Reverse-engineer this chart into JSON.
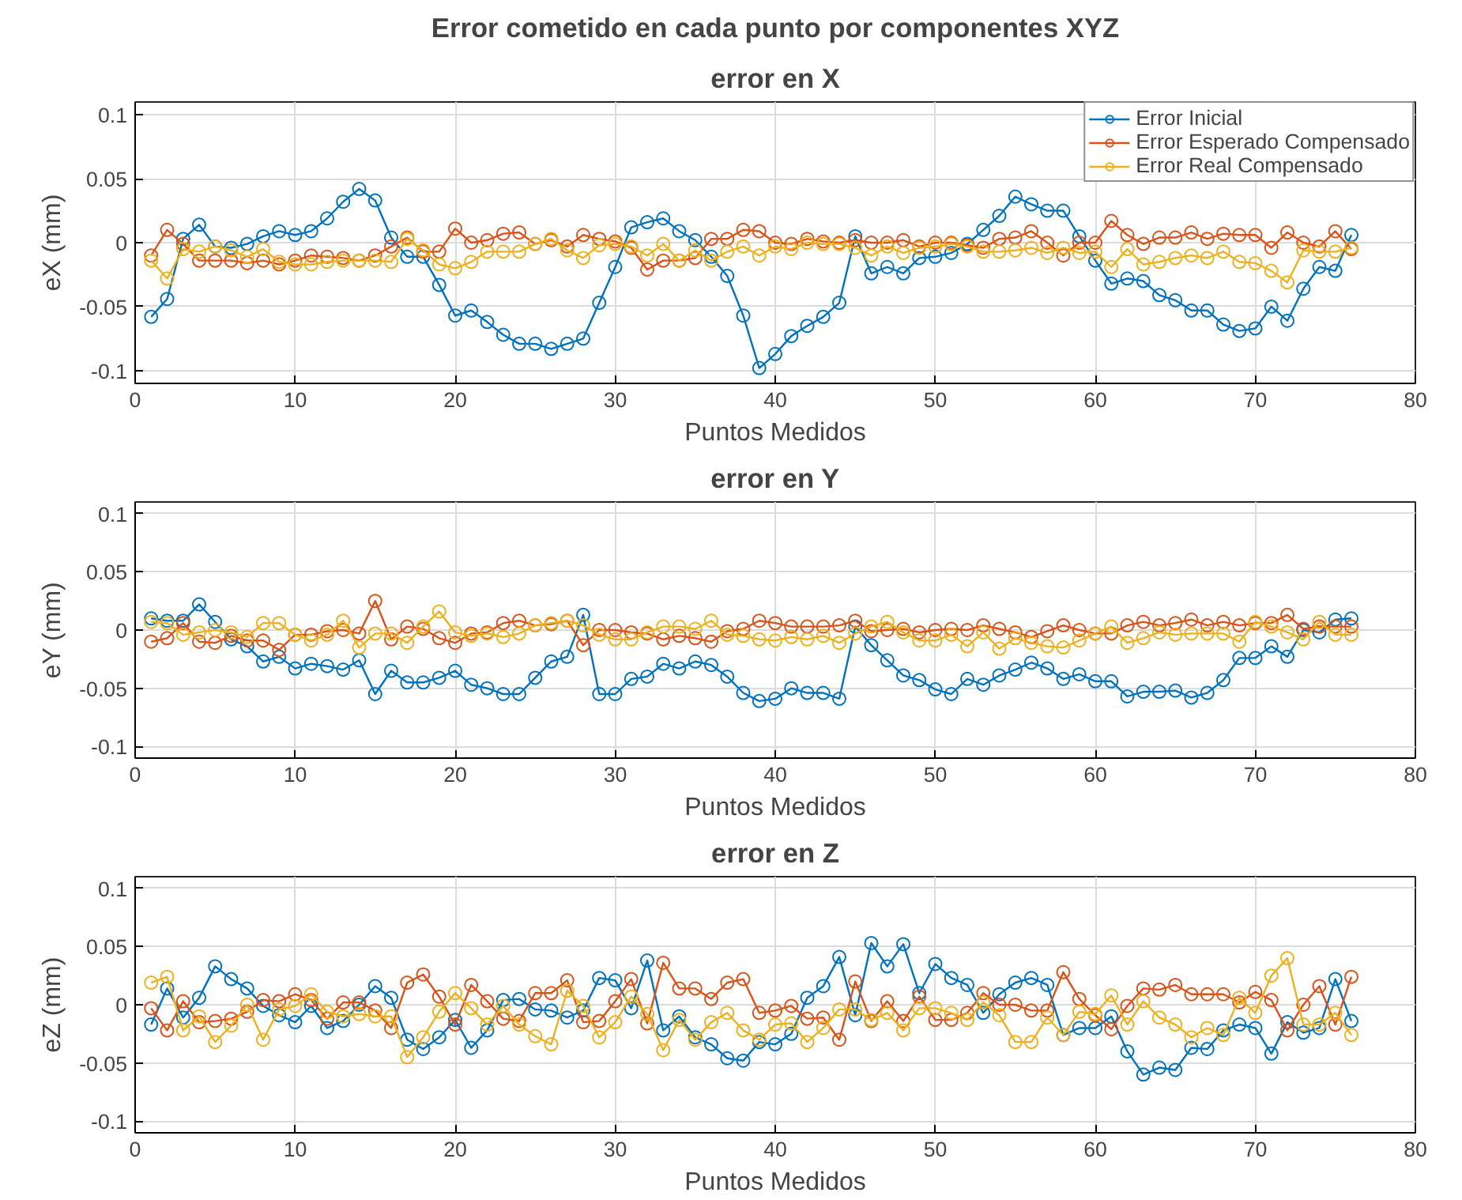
{
  "chart_data": [
    {
      "type": "line",
      "title": "Error cometido en cada punto por componentes XYZ",
      "subtitle": "error en X",
      "xlabel": "Puntos Medidos",
      "ylabel": "eX (mm)",
      "marker": "circle",
      "line_style": "solid",
      "grid": true,
      "legend": "top right",
      "x": [
        1,
        2,
        3,
        4,
        5,
        6,
        7,
        8,
        9,
        10,
        11,
        12,
        13,
        14,
        15,
        16,
        17,
        18,
        19,
        20,
        21,
        22,
        23,
        24,
        25,
        26,
        27,
        28,
        29,
        30,
        31,
        32,
        33,
        34,
        35,
        36,
        37,
        38,
        39,
        40,
        41,
        42,
        43,
        44,
        45,
        46,
        47,
        48,
        49,
        50,
        51,
        52,
        53,
        54,
        55,
        56,
        57,
        58,
        59,
        60,
        61,
        62,
        63,
        64,
        65,
        66,
        67,
        68,
        69,
        70,
        71,
        72,
        73,
        74,
        75,
        76
      ],
      "xlim": [
        0,
        80
      ],
      "xticks": [
        0,
        10,
        20,
        30,
        40,
        50,
        60,
        70,
        80
      ],
      "ylim": [
        -0.11,
        0.11
      ],
      "yticks": [
        -0.1,
        -0.05,
        0,
        0.05,
        0.1
      ],
      "series": [
        {
          "name": "Error Inicial",
          "color": "#0072bd",
          "values": [
            -0.058,
            -0.044,
            0.003,
            0.014,
            -0.003,
            -0.004,
            -0.001,
            0.005,
            0.009,
            0.006,
            0.009,
            0.019,
            0.032,
            0.042,
            0.033,
            0.004,
            -0.011,
            -0.011,
            -0.033,
            -0.057,
            -0.053,
            -0.062,
            -0.072,
            -0.079,
            -0.079,
            -0.083,
            -0.079,
            -0.075,
            -0.047,
            -0.019,
            0.012,
            0.016,
            0.019,
            0.009,
            0.002,
            -0.011,
            -0.026,
            -0.057,
            -0.098,
            -0.087,
            -0.073,
            -0.065,
            -0.058,
            -0.047,
            0.005,
            -0.024,
            -0.019,
            -0.024,
            -0.012,
            -0.011,
            -0.008,
            -0.001,
            0.01,
            0.021,
            0.036,
            0.03,
            0.025,
            0.025,
            0.005,
            -0.014,
            -0.032,
            -0.028,
            -0.03,
            -0.041,
            -0.045,
            -0.053,
            -0.053,
            -0.064,
            -0.069,
            -0.067,
            -0.05,
            -0.061,
            -0.036,
            -0.019,
            -0.022,
            0.006
          ]
        },
        {
          "name": "Error Esperado Compensado",
          "color": "#d95319",
          "values": [
            -0.01,
            0.01,
            -0.001,
            -0.014,
            -0.014,
            -0.014,
            -0.016,
            -0.014,
            -0.017,
            -0.014,
            -0.01,
            -0.011,
            -0.012,
            -0.014,
            -0.01,
            -0.003,
            0.004,
            -0.007,
            -0.007,
            0.011,
            0.0,
            0.002,
            0.007,
            0.008,
            -0.001,
            0.002,
            -0.003,
            0.006,
            0.003,
            0.001,
            -0.004,
            -0.021,
            -0.014,
            -0.014,
            -0.012,
            0.003,
            0.003,
            0.01,
            0.009,
            0.0,
            -0.001,
            0.003,
            0.001,
            0.0,
            0.002,
            0.0,
            0.0,
            0.002,
            -0.003,
            0.0,
            0.0,
            -0.002,
            -0.004,
            0.003,
            0.004,
            0.009,
            0.0,
            -0.01,
            0.0,
            0.0,
            0.017,
            0.006,
            -0.001,
            0.004,
            0.004,
            0.008,
            0.003,
            0.007,
            0.006,
            0.006,
            -0.004,
            0.008,
            0.0,
            -0.003,
            0.009,
            -0.005
          ]
        },
        {
          "name": "Error Real Compensado",
          "color": "#edb120",
          "values": [
            -0.014,
            -0.028,
            -0.005,
            -0.007,
            -0.003,
            -0.006,
            -0.011,
            -0.005,
            -0.015,
            -0.017,
            -0.017,
            -0.015,
            -0.014,
            -0.014,
            -0.014,
            -0.015,
            0.003,
            -0.006,
            -0.017,
            -0.02,
            -0.015,
            -0.007,
            -0.007,
            -0.007,
            -0.001,
            0.003,
            -0.006,
            -0.012,
            -0.002,
            -0.001,
            -0.003,
            -0.01,
            -0.001,
            -0.014,
            -0.006,
            -0.014,
            -0.007,
            -0.003,
            -0.01,
            -0.003,
            -0.005,
            0.0,
            -0.001,
            -0.001,
            -0.004,
            -0.01,
            -0.003,
            -0.008,
            -0.004,
            -0.003,
            -0.001,
            -0.003,
            -0.007,
            -0.007,
            -0.006,
            -0.004,
            -0.008,
            -0.004,
            -0.008,
            -0.007,
            -0.019,
            -0.005,
            -0.017,
            -0.015,
            -0.012,
            -0.01,
            -0.012,
            -0.007,
            -0.015,
            -0.016,
            -0.022,
            -0.031,
            -0.006,
            -0.007,
            -0.007,
            -0.004
          ]
        }
      ]
    },
    {
      "type": "line",
      "title": "error en Y",
      "xlabel": "Puntos Medidos",
      "ylabel": "eY (mm)",
      "marker": "circle",
      "line_style": "solid",
      "grid": true,
      "x": [
        1,
        2,
        3,
        4,
        5,
        6,
        7,
        8,
        9,
        10,
        11,
        12,
        13,
        14,
        15,
        16,
        17,
        18,
        19,
        20,
        21,
        22,
        23,
        24,
        25,
        26,
        27,
        28,
        29,
        30,
        31,
        32,
        33,
        34,
        35,
        36,
        37,
        38,
        39,
        40,
        41,
        42,
        43,
        44,
        45,
        46,
        47,
        48,
        49,
        50,
        51,
        52,
        53,
        54,
        55,
        56,
        57,
        58,
        59,
        60,
        61,
        62,
        63,
        64,
        65,
        66,
        67,
        68,
        69,
        70,
        71,
        72,
        73,
        74,
        75,
        76
      ],
      "xlim": [
        0,
        80
      ],
      "xticks": [
        0,
        10,
        20,
        30,
        40,
        50,
        60,
        70,
        80
      ],
      "ylim": [
        -0.11,
        0.11
      ],
      "yticks": [
        -0.1,
        -0.05,
        0,
        0.05,
        0.1
      ],
      "series": [
        {
          "color": "#0072bd",
          "values": [
            0.01,
            0.008,
            0.008,
            0.022,
            0.007,
            -0.008,
            -0.014,
            -0.027,
            -0.023,
            -0.033,
            -0.029,
            -0.031,
            -0.034,
            -0.026,
            -0.055,
            -0.035,
            -0.045,
            -0.045,
            -0.041,
            -0.035,
            -0.047,
            -0.05,
            -0.055,
            -0.055,
            -0.041,
            -0.027,
            -0.023,
            0.013,
            -0.055,
            -0.055,
            -0.042,
            -0.04,
            -0.029,
            -0.033,
            -0.027,
            -0.03,
            -0.04,
            -0.054,
            -0.061,
            -0.059,
            -0.05,
            -0.054,
            -0.054,
            -0.059,
            0.003,
            -0.013,
            -0.026,
            -0.039,
            -0.043,
            -0.051,
            -0.055,
            -0.042,
            -0.047,
            -0.039,
            -0.034,
            -0.028,
            -0.033,
            -0.042,
            -0.038,
            -0.044,
            -0.044,
            -0.057,
            -0.053,
            -0.053,
            -0.052,
            -0.058,
            -0.054,
            -0.043,
            -0.024,
            -0.024,
            -0.014,
            -0.023,
            0.0,
            -0.002,
            0.009,
            0.01
          ]
        },
        {
          "color": "#d95319",
          "values": [
            -0.01,
            -0.007,
            0.006,
            -0.01,
            -0.011,
            -0.005,
            -0.009,
            -0.009,
            -0.017,
            -0.004,
            -0.004,
            -0.001,
            0.0,
            -0.003,
            0.025,
            -0.008,
            0.003,
            0.001,
            -0.007,
            -0.011,
            -0.003,
            -0.002,
            0.006,
            0.008,
            0.004,
            0.005,
            0.008,
            -0.013,
            0.0,
            0.0,
            -0.002,
            -0.003,
            -0.008,
            -0.005,
            -0.007,
            -0.01,
            -0.001,
            0.001,
            0.008,
            0.006,
            0.003,
            0.003,
            0.003,
            0.004,
            0.008,
            -0.001,
            0.0,
            0.001,
            -0.002,
            0.0,
            0.001,
            0.0,
            0.004,
            0.001,
            -0.002,
            -0.006,
            -0.001,
            0.004,
            0.0,
            -0.003,
            -0.003,
            0.004,
            0.007,
            0.004,
            0.006,
            0.009,
            0.004,
            0.007,
            0.004,
            0.006,
            0.006,
            0.013,
            0.001,
            0.003,
            0.003,
            0.003
          ]
        },
        {
          "color": "#edb120",
          "values": [
            0.007,
            0.006,
            -0.004,
            -0.002,
            0.0,
            -0.002,
            -0.006,
            0.006,
            0.006,
            -0.004,
            -0.009,
            -0.004,
            0.008,
            -0.015,
            -0.003,
            -0.003,
            -0.011,
            0.003,
            0.016,
            -0.002,
            -0.005,
            -0.003,
            -0.006,
            -0.003,
            0.004,
            0.006,
            0.008,
            0.004,
            -0.004,
            -0.008,
            -0.008,
            -0.002,
            0.003,
            0.003,
            0.001,
            0.008,
            -0.004,
            -0.005,
            -0.008,
            -0.009,
            -0.006,
            -0.008,
            -0.005,
            -0.011,
            -0.003,
            0.003,
            0.007,
            -0.002,
            -0.009,
            -0.009,
            -0.004,
            -0.014,
            -0.002,
            -0.016,
            -0.007,
            -0.011,
            -0.014,
            -0.015,
            -0.009,
            -0.003,
            0.003,
            -0.011,
            -0.007,
            -0.002,
            -0.004,
            -0.003,
            -0.003,
            -0.003,
            -0.01,
            0.007,
            0.003,
            -0.002,
            -0.008,
            0.007,
            -0.004,
            -0.004
          ]
        }
      ]
    },
    {
      "type": "line",
      "title": "error en Z",
      "xlabel": "Puntos Medidos",
      "ylabel": "eZ (mm)",
      "marker": "circle",
      "line_style": "solid",
      "grid": true,
      "x": [
        1,
        2,
        3,
        4,
        5,
        6,
        7,
        8,
        9,
        10,
        11,
        12,
        13,
        14,
        15,
        16,
        17,
        18,
        19,
        20,
        21,
        22,
        23,
        24,
        25,
        26,
        27,
        28,
        29,
        30,
        31,
        32,
        33,
        34,
        35,
        36,
        37,
        38,
        39,
        40,
        41,
        42,
        43,
        44,
        45,
        46,
        47,
        48,
        49,
        50,
        51,
        52,
        53,
        54,
        55,
        56,
        57,
        58,
        59,
        60,
        61,
        62,
        63,
        64,
        65,
        66,
        67,
        68,
        69,
        70,
        71,
        72,
        73,
        74,
        75,
        76
      ],
      "xlim": [
        0,
        80
      ],
      "xticks": [
        0,
        10,
        20,
        30,
        40,
        50,
        60,
        70,
        80
      ],
      "ylim": [
        -0.11,
        0.11
      ],
      "yticks": [
        -0.1,
        -0.05,
        0,
        0.05,
        0.1
      ],
      "series": [
        {
          "color": "#0072bd",
          "values": [
            -0.017,
            0.014,
            -0.011,
            0.006,
            0.033,
            0.022,
            0.014,
            -0.001,
            -0.009,
            -0.015,
            -0.001,
            -0.02,
            -0.014,
            0.0,
            0.016,
            0.006,
            -0.03,
            -0.038,
            -0.028,
            -0.013,
            -0.037,
            -0.022,
            0.004,
            0.005,
            -0.004,
            -0.005,
            -0.011,
            -0.005,
            0.023,
            0.021,
            -0.003,
            0.038,
            -0.022,
            -0.01,
            -0.028,
            -0.034,
            -0.046,
            -0.048,
            -0.032,
            -0.034,
            -0.025,
            0.006,
            0.016,
            0.041,
            -0.009,
            0.053,
            0.033,
            0.052,
            0.01,
            0.035,
            0.023,
            0.017,
            -0.007,
            0.009,
            0.019,
            0.023,
            0.017,
            -0.026,
            -0.02,
            -0.02,
            -0.01,
            -0.04,
            -0.06,
            -0.054,
            -0.056,
            -0.037,
            -0.038,
            -0.022,
            -0.017,
            -0.02,
            -0.042,
            -0.015,
            -0.024,
            -0.02,
            0.022,
            -0.014
          ]
        },
        {
          "color": "#d95319",
          "values": [
            -0.003,
            -0.022,
            0.003,
            -0.015,
            -0.014,
            -0.012,
            -0.006,
            0.004,
            0.003,
            0.009,
            0.004,
            -0.012,
            0.002,
            0.002,
            -0.005,
            -0.02,
            0.019,
            0.026,
            0.007,
            -0.017,
            0.017,
            0.003,
            -0.012,
            -0.014,
            0.01,
            0.01,
            0.021,
            -0.015,
            -0.014,
            0.003,
            0.022,
            -0.016,
            0.036,
            0.014,
            0.014,
            0.005,
            0.019,
            0.022,
            -0.007,
            -0.005,
            -0.001,
            -0.012,
            -0.011,
            -0.03,
            0.02,
            -0.014,
            0.003,
            -0.014,
            0.007,
            -0.013,
            -0.013,
            -0.007,
            0.01,
            0.0,
            0.0,
            -0.005,
            -0.005,
            0.028,
            0.005,
            -0.009,
            -0.021,
            -0.001,
            0.014,
            0.013,
            0.017,
            0.009,
            0.009,
            0.009,
            0.002,
            0.011,
            0.004,
            -0.022,
            0.0,
            0.016,
            -0.017,
            0.024
          ]
        },
        {
          "color": "#edb120",
          "values": [
            0.019,
            0.024,
            -0.022,
            -0.01,
            -0.032,
            -0.018,
            0.0,
            -0.03,
            -0.004,
            -0.001,
            0.009,
            -0.006,
            -0.01,
            -0.008,
            -0.01,
            -0.01,
            -0.045,
            -0.028,
            -0.006,
            0.01,
            -0.003,
            -0.017,
            -0.001,
            -0.017,
            -0.027,
            -0.034,
            0.012,
            -0.001,
            -0.028,
            -0.015,
            0.007,
            -0.008,
            -0.039,
            -0.013,
            -0.03,
            -0.015,
            -0.007,
            -0.022,
            -0.03,
            -0.017,
            -0.016,
            -0.032,
            -0.02,
            -0.004,
            -0.004,
            -0.013,
            -0.007,
            -0.022,
            -0.003,
            -0.003,
            -0.007,
            -0.013,
            0.002,
            -0.009,
            -0.032,
            -0.032,
            -0.011,
            -0.026,
            -0.006,
            -0.008,
            0.008,
            -0.017,
            0.003,
            -0.011,
            -0.017,
            -0.028,
            -0.02,
            -0.026,
            0.006,
            -0.007,
            0.025,
            0.04,
            -0.017,
            -0.017,
            -0.007,
            -0.026
          ]
        }
      ]
    }
  ]
}
